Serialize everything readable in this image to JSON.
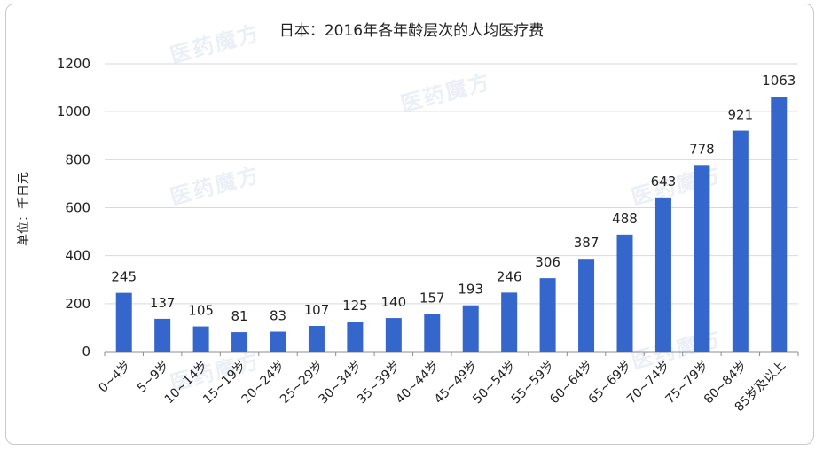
{
  "chart_data": {
    "type": "bar",
    "title": "日本：2016年各年龄层次的人均医疗费",
    "ylabel": "单位：千日元",
    "xlabel": "",
    "ylim": [
      0,
      1200
    ],
    "yticks": [
      0,
      200,
      400,
      600,
      800,
      1000,
      1200
    ],
    "grid": true,
    "categories": [
      "0~4岁",
      "5~9岁",
      "10~14岁",
      "15~19岁",
      "20~24岁",
      "25~29岁",
      "30~34岁",
      "35~39岁",
      "40~44岁",
      "45~49岁",
      "50~54岁",
      "55~59岁",
      "60~64岁",
      "65~69岁",
      "70~74岁",
      "75~79岁",
      "80~84岁",
      "85岁及以上"
    ],
    "values": [
      245,
      137,
      105,
      81,
      83,
      107,
      125,
      140,
      157,
      193,
      246,
      306,
      387,
      488,
      643,
      778,
      921,
      1063
    ],
    "bar_color": "#3566cc"
  },
  "watermark": "医药魔方"
}
